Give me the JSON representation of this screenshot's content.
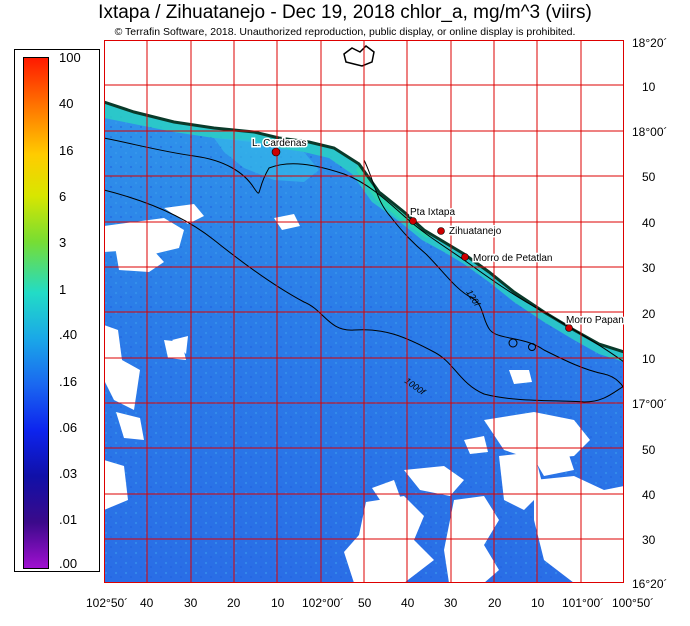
{
  "header": {
    "title": "Ixtapa / Zihuatanejo - Dec 19, 2018  chlor_a, mg/m^3 (viirs)",
    "subtitle": "© Terrafin Software,  2018.  Unauthorized reproduction, public display, or online display is prohibited."
  },
  "colorbar": {
    "labels": [
      "100",
      "40",
      "16",
      "6",
      "3",
      "1",
      ".40",
      ".16",
      ".06",
      ".03",
      ".01",
      ".00"
    ]
  },
  "map": {
    "places": [
      {
        "name": "L. Cardenas"
      },
      {
        "name": "Pta Ixtapa"
      },
      {
        "name": "Zihuatanejo"
      },
      {
        "name": "Morro de Petatlan"
      },
      {
        "name": "Morro Papan"
      }
    ],
    "contours": [
      "120f",
      "1000f"
    ],
    "lat_ticks": [
      "18°20´",
      "10",
      "18°00´",
      "50",
      "40",
      "30",
      "20",
      "10",
      "17°00´",
      "50",
      "40",
      "30",
      "16°20´"
    ],
    "lon_ticks": [
      "102°50´",
      "40",
      "30",
      "20",
      "10",
      "102°00´",
      "50",
      "40",
      "30",
      "20",
      "10",
      "101°00´",
      "100°50´"
    ],
    "colors": {
      "land": "#ffffff",
      "water_low": "#2a73e8",
      "water_mid": "#2f8fea",
      "coast_high": "#2fd6c0",
      "grid": "#dd0000",
      "marker": "#cc0000"
    }
  }
}
